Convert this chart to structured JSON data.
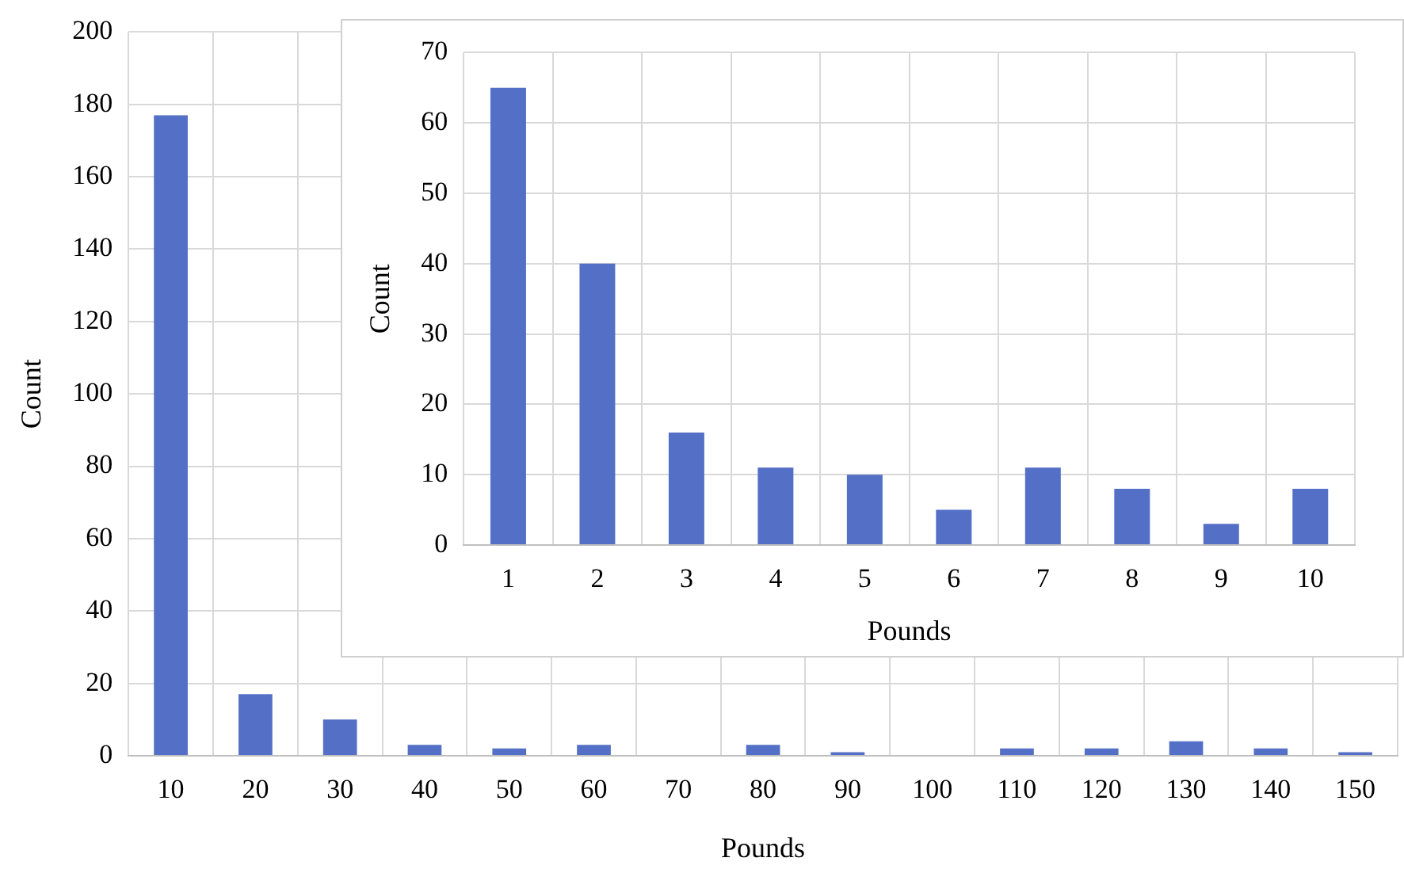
{
  "chart_data": [
    {
      "type": "bar",
      "xlabel": "Pounds",
      "ylabel": "Count",
      "categories": [
        "10",
        "20",
        "30",
        "40",
        "50",
        "60",
        "70",
        "80",
        "90",
        "100",
        "110",
        "120",
        "130",
        "140",
        "150"
      ],
      "values": [
        177,
        17,
        10,
        3,
        2,
        3,
        0,
        3,
        1,
        0,
        2,
        2,
        4,
        2,
        1
      ],
      "color": "#5470c6",
      "ylim": [
        0,
        200
      ],
      "yticks": [
        0,
        20,
        40,
        60,
        80,
        100,
        120,
        140,
        160,
        180,
        200
      ],
      "grid": true
    },
    {
      "type": "bar",
      "xlabel": "Pounds",
      "ylabel": "Count",
      "categories": [
        "1",
        "2",
        "3",
        "4",
        "5",
        "6",
        "7",
        "8",
        "9",
        "10"
      ],
      "values": [
        65,
        40,
        16,
        11,
        10,
        5,
        11,
        8,
        3,
        8
      ],
      "color": "#5470c6",
      "ylim": [
        0,
        70
      ],
      "yticks": [
        0,
        10,
        20,
        30,
        40,
        50,
        60,
        70
      ],
      "grid": true
    }
  ]
}
